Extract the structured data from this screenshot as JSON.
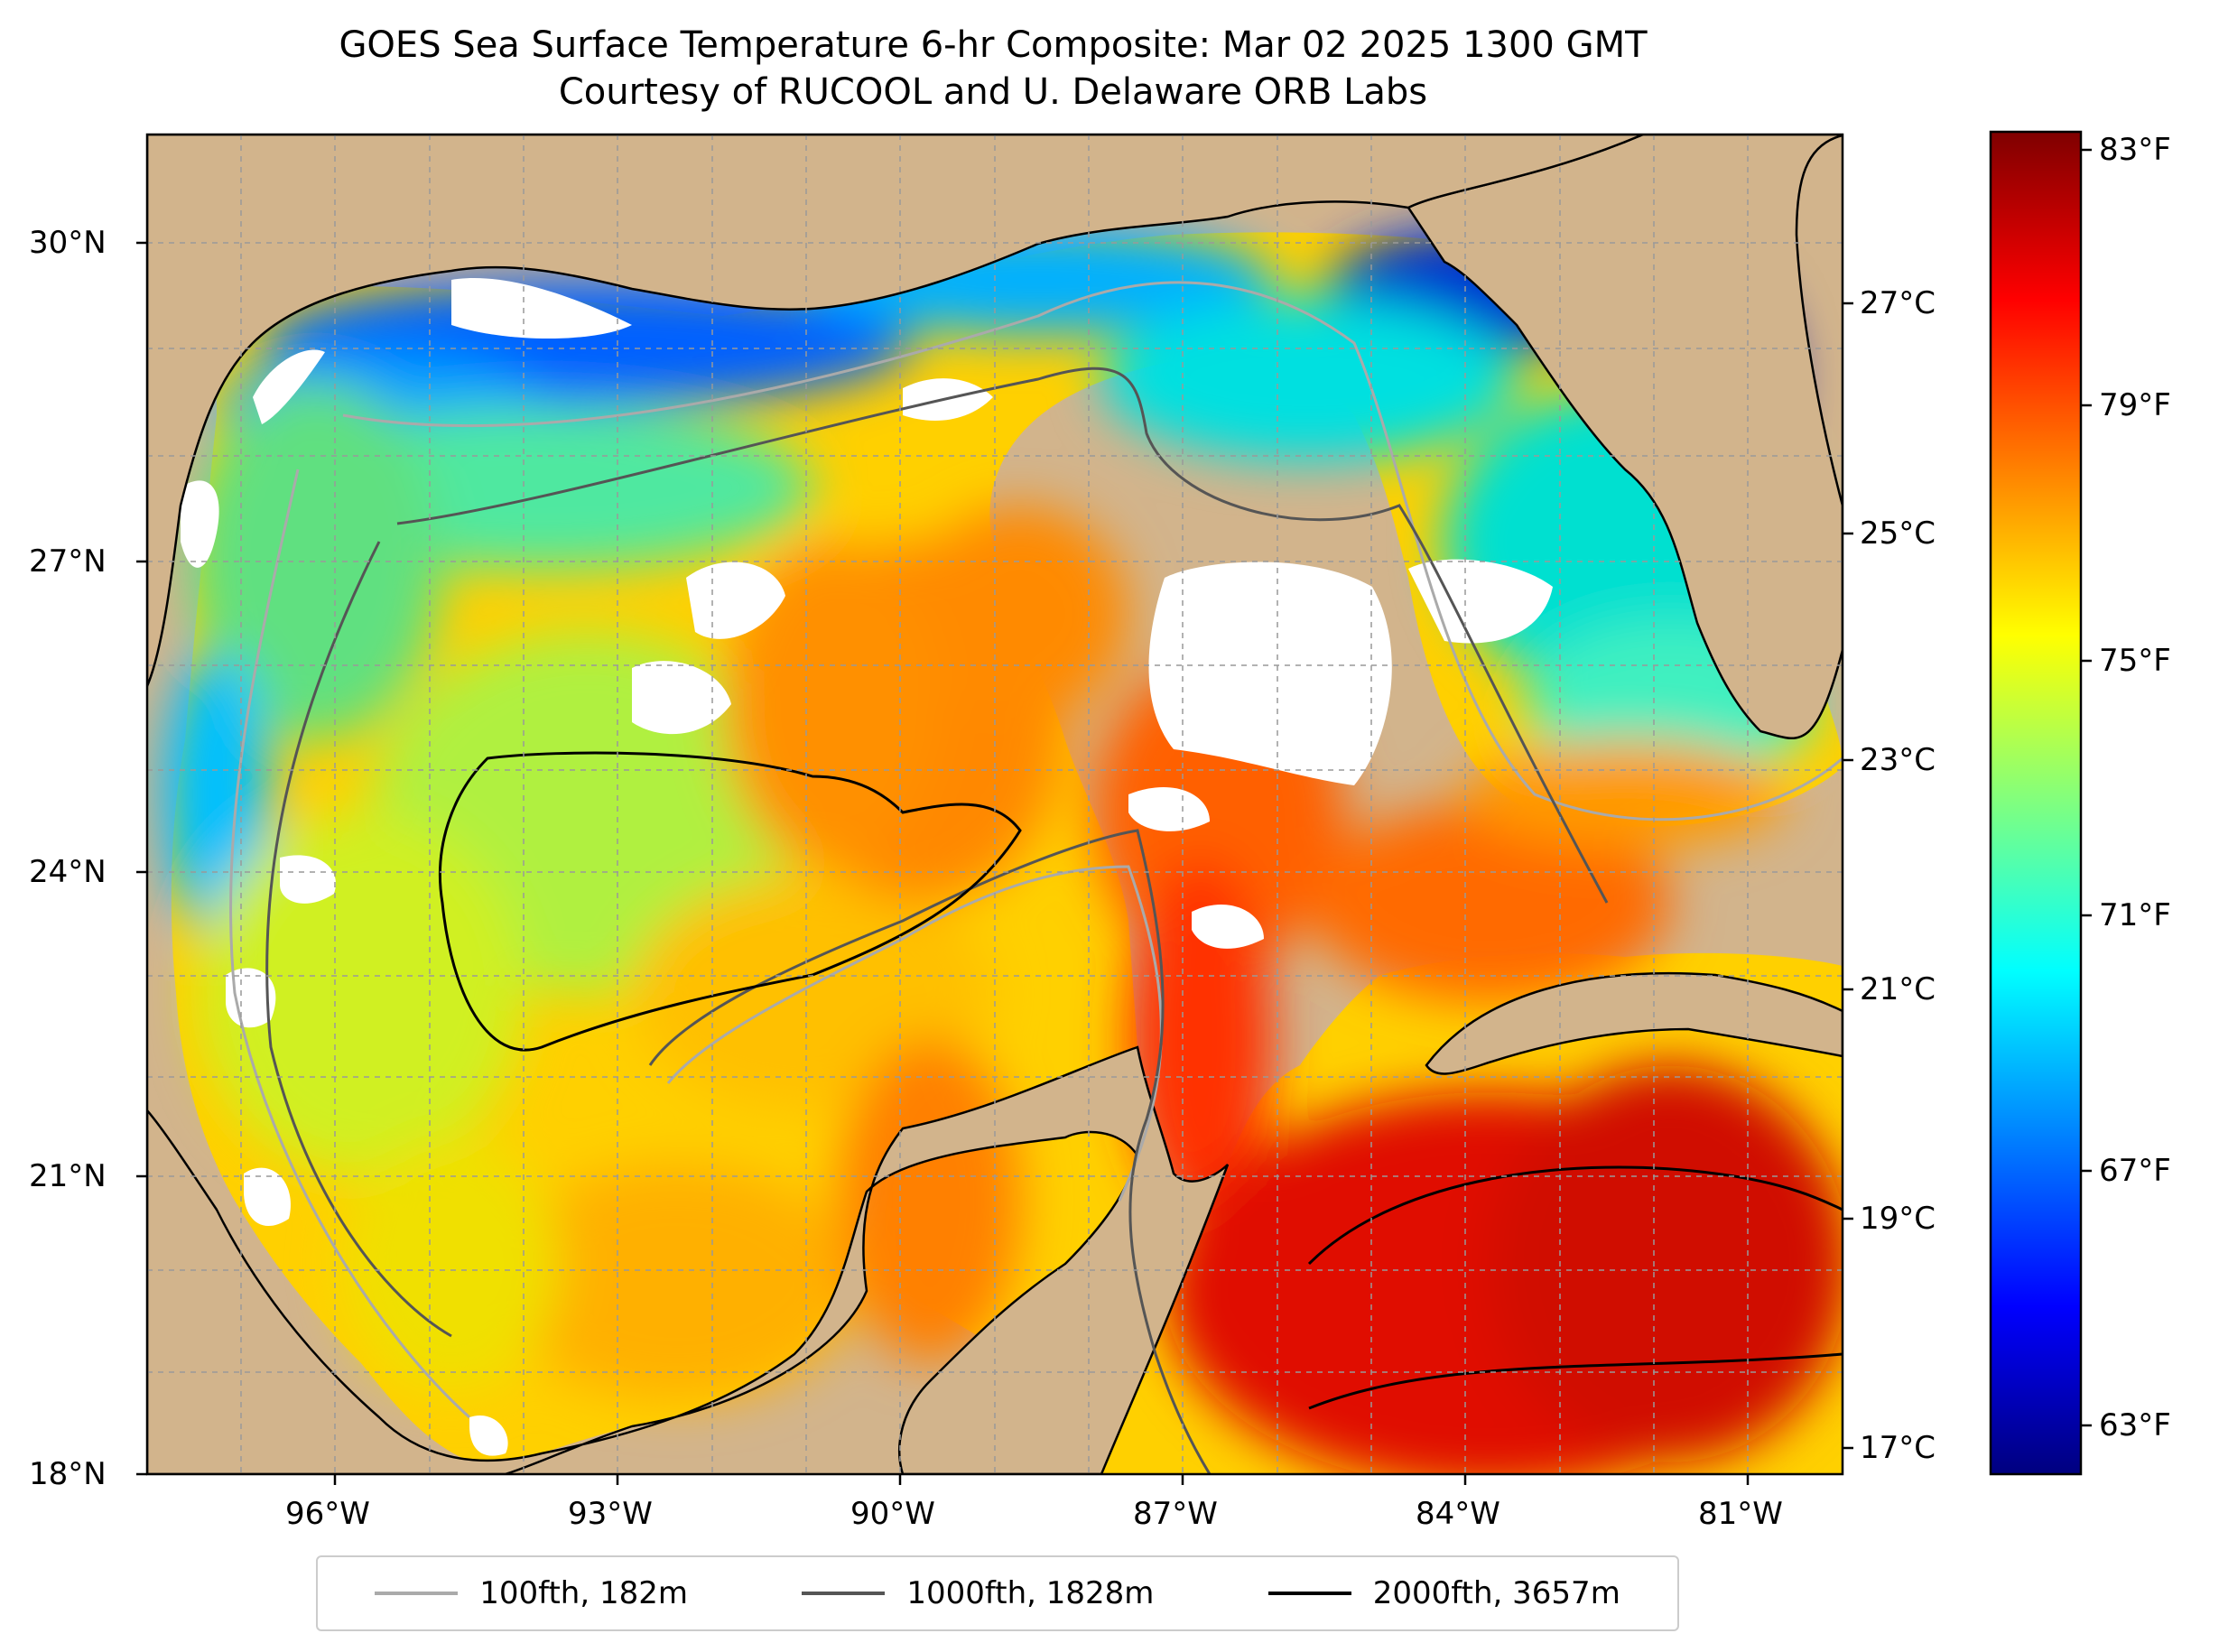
{
  "title": {
    "line1": "GOES Sea Surface Temperature 6-hr Composite: Mar 02 2025 1300 GMT",
    "line2": "Courtesy of RUCOOL and U. Delaware ORB Labs"
  },
  "map": {
    "lon_range": [
      -98,
      -80
    ],
    "lat_range": [
      18,
      31
    ],
    "lon_ticks": [
      {
        "value": -96,
        "label": "96°W"
      },
      {
        "value": -93,
        "label": "93°W"
      },
      {
        "value": -90,
        "label": "90°W"
      },
      {
        "value": -87,
        "label": "87°W"
      },
      {
        "value": -84,
        "label": "84°W"
      },
      {
        "value": -81,
        "label": "81°W"
      }
    ],
    "lat_ticks": [
      {
        "value": 30,
        "label": "30°N"
      },
      {
        "value": 27,
        "label": "27°N"
      },
      {
        "value": 24,
        "label": "24°N"
      },
      {
        "value": 21,
        "label": "21°N"
      },
      {
        "value": 18,
        "label": "18°N"
      }
    ],
    "colors": {
      "land": "#d2b48c",
      "no_data": "#ffffff",
      "gridline": "#999999"
    }
  },
  "colorbar": {
    "range_c": [
      16.8,
      28.3
    ],
    "fahrenheit_labels": [
      {
        "value": 83,
        "label": "83°F"
      },
      {
        "value": 79,
        "label": "79°F"
      },
      {
        "value": 75,
        "label": "75°F"
      },
      {
        "value": 71,
        "label": "71°F"
      },
      {
        "value": 67,
        "label": "67°F"
      },
      {
        "value": 63,
        "label": "63°F"
      }
    ],
    "celsius_labels": [
      {
        "value": 27,
        "label": "27°C"
      },
      {
        "value": 25,
        "label": "25°C"
      },
      {
        "value": 23,
        "label": "23°C"
      },
      {
        "value": 21,
        "label": "21°C"
      },
      {
        "value": 19,
        "label": "19°C"
      },
      {
        "value": 17,
        "label": "17°C"
      }
    ],
    "colormap": "jet"
  },
  "legend": {
    "items": [
      {
        "label": "100fth, 182m",
        "color": "#aaaaaa"
      },
      {
        "label": "1000fth, 1828m",
        "color": "#555555"
      },
      {
        "label": "2000fth, 3657m",
        "color": "#000000"
      }
    ]
  }
}
